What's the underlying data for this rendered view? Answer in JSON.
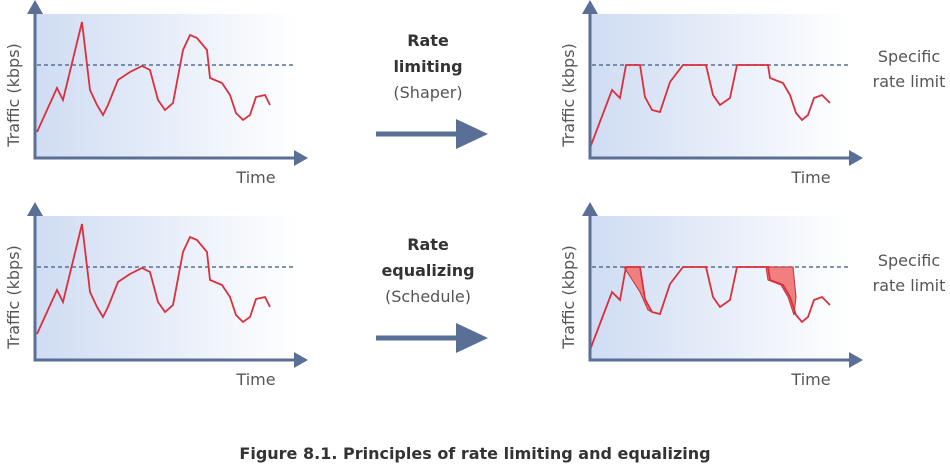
{
  "panels": [
    {
      "y_label": "Traffic (kbps)",
      "x_label": "Time"
    },
    {
      "y_label": "Traffic (kbps)",
      "x_label": "Time"
    },
    {
      "y_label": "Traffic (kbps)",
      "x_label": "Time"
    },
    {
      "y_label": "Traffic (kbps)",
      "x_label": "Time"
    }
  ],
  "arrows": [
    {
      "title": [
        "Rate",
        "limiting"
      ],
      "subtitle": "(Shaper)"
    },
    {
      "title": [
        "Rate",
        "equalizing"
      ],
      "subtitle": "(Schedule)"
    }
  ],
  "limit_labels": [
    [
      "Specific",
      "rate limit"
    ],
    [
      "Specific",
      "rate limit"
    ]
  ],
  "caption": "Figure 8.1. Principles of rate limiting and equalizing"
}
